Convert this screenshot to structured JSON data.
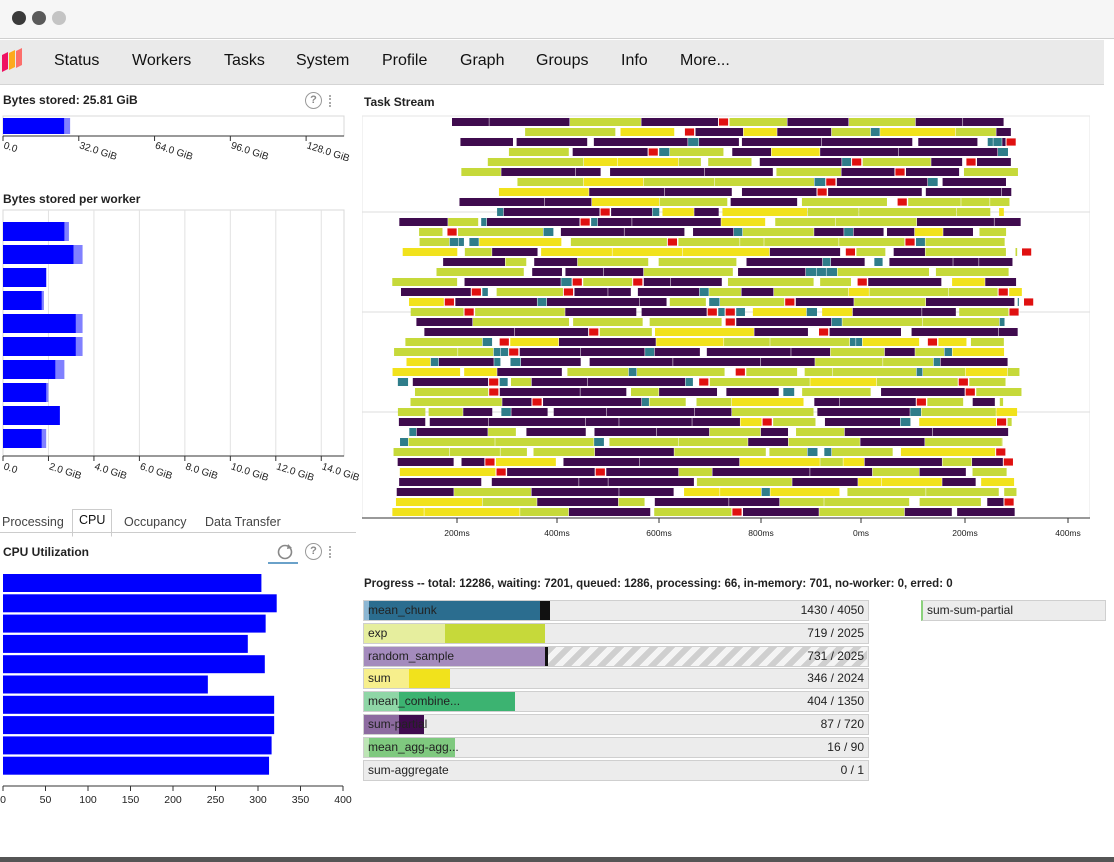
{
  "nav": {
    "items": [
      "Status",
      "Workers",
      "Tasks",
      "System",
      "Profile",
      "Graph",
      "Groups",
      "Info",
      "More..."
    ]
  },
  "bytes_stored": {
    "title": "Bytes stored: 25.81 GiB",
    "ticks": [
      "0.0",
      "32.0 GiB",
      "64.0 GiB",
      "96.0 GiB",
      "128.0 GiB"
    ]
  },
  "per_worker": {
    "title": "Bytes stored per worker",
    "ticks": [
      "0.0",
      "2.0 GiB",
      "4.0 GiB",
      "6.0 GiB",
      "8.0 GiB",
      "10.0 GiB",
      "12.0 GiB",
      "14.0 GiB"
    ]
  },
  "tabs": [
    "Processing",
    "CPU",
    "Occupancy",
    "Data Transfer"
  ],
  "cpu": {
    "title": "CPU Utilization",
    "ticks": [
      "0",
      "50",
      "100",
      "150",
      "200",
      "250",
      "300",
      "350",
      "400"
    ]
  },
  "task_stream": {
    "title": "Task Stream",
    "ticks": [
      "200ms",
      "400ms",
      "600ms",
      "800ms",
      "0ms",
      "200ms",
      "400ms"
    ]
  },
  "progress": {
    "title": "Progress -- total: 12286, waiting: 7201, queued: 1286, processing: 66, in-memory: 701, no-worker: 0, erred: 0",
    "rows": [
      {
        "name": "mean_chunk",
        "count": "1430 / 4050"
      },
      {
        "name": "exp",
        "count": "719 / 2025"
      },
      {
        "name": "random_sample",
        "count": "731 / 2025"
      },
      {
        "name": "sum",
        "count": "346 / 2024"
      },
      {
        "name": "mean_combine...",
        "count": "404 / 1350"
      },
      {
        "name": "sum-partial",
        "count": "87 / 720"
      },
      {
        "name": "mean_agg-agg...",
        "count": "16 / 90"
      },
      {
        "name": "sum-aggregate",
        "count": "0 / 1"
      }
    ],
    "side_label": "sum-sum-partial"
  },
  "colors": {
    "memory_bar": "#0000ff",
    "memory_bar_light": "#8080ff",
    "task_purple": "#3f0b4e",
    "task_yellow": "#f1e21c",
    "task_lime": "#c6d93a",
    "task_teal": "#2f7d8a",
    "task_red": "#e01010"
  },
  "chart_data": [
    {
      "type": "bar",
      "title": "Bytes stored: 25.81 GiB",
      "orientation": "horizontal",
      "unit": "GiB",
      "xlim": [
        0,
        144
      ],
      "values": [
        25.81
      ],
      "ticks": [
        0,
        32,
        64,
        96,
        128
      ]
    },
    {
      "type": "bar",
      "title": "Bytes stored per worker",
      "orientation": "horizontal",
      "unit": "GiB",
      "xlim": [
        0,
        15
      ],
      "values": [
        2.7,
        3.1,
        1.9,
        1.7,
        3.2,
        3.2,
        2.3,
        1.9,
        2.5,
        1.7
      ],
      "spill": [
        0.2,
        0.4,
        0.0,
        0.1,
        0.3,
        0.3,
        0.4,
        0.1,
        0.0,
        0.2
      ],
      "ticks": [
        0,
        2,
        4,
        6,
        8,
        10,
        12,
        14
      ]
    },
    {
      "type": "bar",
      "title": "CPU Utilization",
      "orientation": "horizontal",
      "xlim": [
        0,
        400
      ],
      "values": [
        304,
        322,
        309,
        288,
        308,
        241,
        319,
        319,
        316,
        313
      ],
      "ticks": [
        0,
        50,
        100,
        150,
        200,
        250,
        300,
        350,
        400
      ]
    },
    {
      "type": "bar",
      "title": "Progress",
      "orientation": "horizontal",
      "categories": [
        "mean_chunk",
        "exp",
        "random_sample",
        "sum",
        "mean_combine...",
        "sum-partial",
        "mean_agg-agg...",
        "sum-aggregate"
      ],
      "totals": [
        4050,
        2025,
        2025,
        2024,
        1350,
        720,
        90,
        1
      ],
      "in_memory_fraction": [
        0.34,
        0.2,
        0.0,
        0.08,
        0.23,
        0.05,
        0.17,
        0.0
      ],
      "completed_fraction": [
        0.35,
        0.36,
        0.36,
        0.17,
        0.3,
        0.12,
        0.18,
        0.0
      ],
      "processing_fraction": [
        0.02,
        0.0,
        0.005,
        0.0,
        0.0,
        0.0,
        0.0,
        0.0
      ],
      "waiting_fraction": [
        0.0,
        0.0,
        0.64,
        0.0,
        0.0,
        0.0,
        0.0,
        0.0
      ]
    }
  ]
}
